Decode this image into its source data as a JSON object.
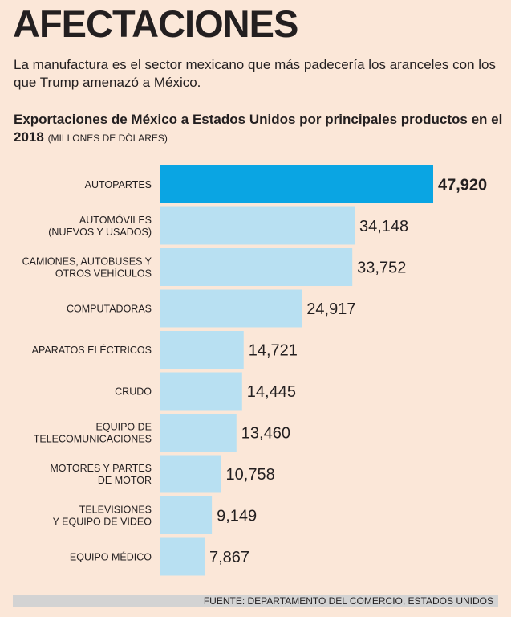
{
  "header": {
    "title": "AFECTACIONES",
    "subtitle": "La manufactura es el sector mexicano que más padecería los aranceles con los que Trump amenazó a México."
  },
  "chart_header": {
    "title": "Exportaciones de México a Estados Unidos por principales productos en el 2018",
    "units": "(MILLONES DE DÓLARES)"
  },
  "colors": {
    "highlight": "#0aa5e3",
    "bar": "#b8e0f2",
    "background": "#fbe7d8"
  },
  "chart_data": {
    "type": "bar",
    "orientation": "horizontal",
    "title": "Exportaciones de México a Estados Unidos por principales productos en el 2018",
    "xlabel": "",
    "ylabel": "",
    "units": "Millones de dólares",
    "xlim": [
      0,
      50000
    ],
    "categories": [
      [
        "AUTOPARTES"
      ],
      [
        "AUTOMÓVILES",
        "(NUEVOS Y USADOS)"
      ],
      [
        "CAMIONES, AUTOBUSES Y",
        "OTROS VEHÍCULOS"
      ],
      [
        "COMPUTADORAS"
      ],
      [
        "APARATOS ELÉCTRICOS"
      ],
      [
        "CRUDO"
      ],
      [
        "EQUIPO DE",
        "TELECOMUNICACIONES"
      ],
      [
        "MOTORES Y PARTES",
        "DE MOTOR"
      ],
      [
        "TELEVISIONES",
        "Y EQUIPO DE VIDEO"
      ],
      [
        "EQUIPO MÉDICO"
      ]
    ],
    "values": [
      47920,
      34148,
      33752,
      24917,
      14721,
      14445,
      13460,
      10758,
      9149,
      7867
    ],
    "value_labels": [
      "47,920",
      "34,148",
      "33,752",
      "24,917",
      "14,721",
      "14,445",
      "13,460",
      "10,758",
      "9,149",
      "7,867"
    ],
    "highlight_index": 0
  },
  "source": "FUENTE: DEPARTAMENTO DEL COMERCIO, ESTADOS UNIDOS"
}
